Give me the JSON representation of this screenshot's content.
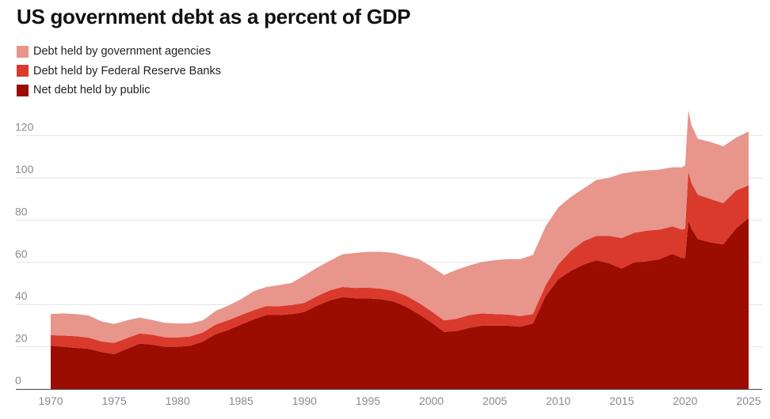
{
  "chart_data": {
    "type": "area",
    "stacked": true,
    "title": "US government debt as a percent of GDP",
    "xlabel": "",
    "ylabel": "",
    "xlim": [
      1970,
      2025
    ],
    "ylim": [
      0,
      130
    ],
    "x_ticks": [
      1970,
      1975,
      1980,
      1985,
      1990,
      1995,
      2000,
      2005,
      2010,
      2015,
      2020,
      2025
    ],
    "y_ticks": [
      0,
      20,
      40,
      60,
      80,
      100,
      120
    ],
    "grid": true,
    "legend_position": "top-left",
    "x": [
      1970,
      1971,
      1972,
      1973,
      1974,
      1975,
      1976,
      1977,
      1978,
      1979,
      1980,
      1981,
      1982,
      1983,
      1984,
      1985,
      1986,
      1987,
      1988,
      1989,
      1990,
      1991,
      1992,
      1993,
      1994,
      1995,
      1996,
      1997,
      1998,
      1999,
      2000,
      2001,
      2002,
      2003,
      2004,
      2005,
      2006,
      2007,
      2008,
      2009,
      2010,
      2011,
      2012,
      2013,
      2014,
      2015,
      2016,
      2017,
      2018,
      2019,
      2019.75,
      2020,
      2020.25,
      2020.5,
      2021,
      2022,
      2023,
      2024,
      2025
    ],
    "series": [
      {
        "name": "Net debt held by public",
        "color": "#9b0d00",
        "values": [
          20.5,
          20.0,
          19.5,
          19.0,
          17.5,
          16.5,
          19.0,
          21.5,
          21.0,
          20.0,
          20.0,
          20.5,
          22.5,
          26.0,
          28.0,
          30.5,
          33.0,
          35.0,
          35.0,
          35.5,
          36.5,
          39.5,
          42.0,
          43.5,
          43.0,
          43.0,
          42.5,
          41.5,
          39.0,
          35.5,
          31.5,
          27.0,
          27.5,
          29.0,
          30.0,
          30.0,
          30.0,
          29.5,
          31.0,
          44.0,
          52.0,
          56.0,
          59.0,
          61.0,
          59.5,
          57.0,
          60.0,
          60.5,
          61.5,
          64.0,
          62.0,
          62.0,
          80.0,
          76.0,
          71.0,
          69.5,
          68.5,
          76.0,
          81.0
        ]
      },
      {
        "name": "Debt held by Federal Reserve Banks",
        "color": "#d93a2b",
        "values": [
          5.0,
          5.3,
          5.5,
          5.3,
          5.0,
          5.3,
          5.0,
          4.8,
          4.7,
          4.5,
          4.4,
          4.4,
          4.3,
          4.5,
          4.6,
          4.5,
          4.3,
          4.3,
          4.2,
          4.3,
          4.3,
          4.5,
          4.7,
          4.8,
          4.9,
          5.0,
          5.0,
          5.0,
          5.2,
          5.3,
          5.3,
          5.5,
          5.8,
          6.0,
          5.8,
          5.5,
          5.3,
          5.0,
          4.5,
          5.0,
          7.0,
          9.5,
          11.0,
          11.5,
          13.0,
          14.5,
          14.0,
          14.5,
          14.0,
          13.0,
          13.5,
          14.0,
          23.0,
          21.5,
          21.0,
          20.5,
          19.5,
          18.0,
          15.5
        ]
      },
      {
        "name": "Debt held by government agencies",
        "color": "#e8958c",
        "values": [
          10.0,
          10.5,
          10.5,
          10.5,
          9.5,
          9.0,
          8.5,
          7.5,
          7.0,
          6.8,
          6.6,
          6.2,
          5.7,
          6.5,
          6.9,
          7.5,
          9.0,
          9.0,
          10.0,
          10.5,
          13.0,
          13.5,
          14.0,
          15.5,
          16.5,
          17.0,
          17.5,
          18.0,
          18.8,
          20.7,
          21.2,
          21.5,
          23.2,
          23.5,
          24.4,
          25.5,
          26.2,
          27.0,
          28.0,
          28.0,
          27.0,
          25.5,
          25.0,
          26.5,
          27.5,
          30.5,
          29.0,
          28.5,
          28.5,
          28.0,
          29.5,
          30.0,
          29.0,
          27.5,
          26.5,
          27.0,
          27.0,
          25.0,
          25.5
        ]
      }
    ]
  }
}
